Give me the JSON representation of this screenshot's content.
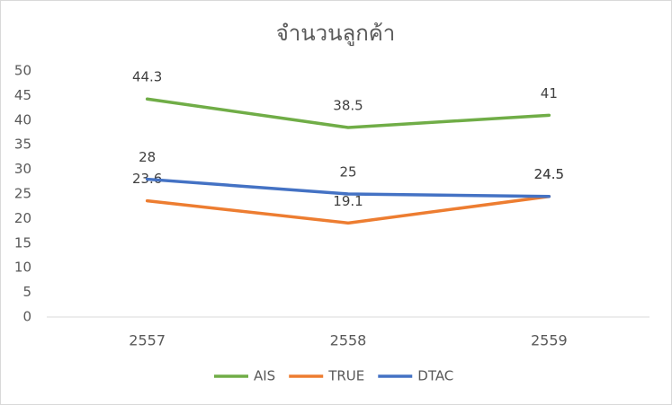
{
  "chart_data": {
    "type": "line",
    "title": "จำนวนลูกค้า",
    "categories": [
      "2557",
      "2558",
      "2559"
    ],
    "series": [
      {
        "name": "AIS",
        "color": "#70ad47",
        "values": [
          44.3,
          38.5,
          41
        ]
      },
      {
        "name": "TRUE",
        "color": "#ed7d31",
        "values": [
          23.6,
          19.1,
          24.5
        ]
      },
      {
        "name": "DTAC",
        "color": "#4472c4",
        "values": [
          28,
          25,
          24.5
        ]
      }
    ],
    "ylim": [
      0,
      50
    ],
    "yticks": [
      0,
      5,
      10,
      15,
      20,
      25,
      30,
      35,
      40,
      45,
      50
    ],
    "grid": false,
    "data_labels": true,
    "legend": "bottom"
  }
}
